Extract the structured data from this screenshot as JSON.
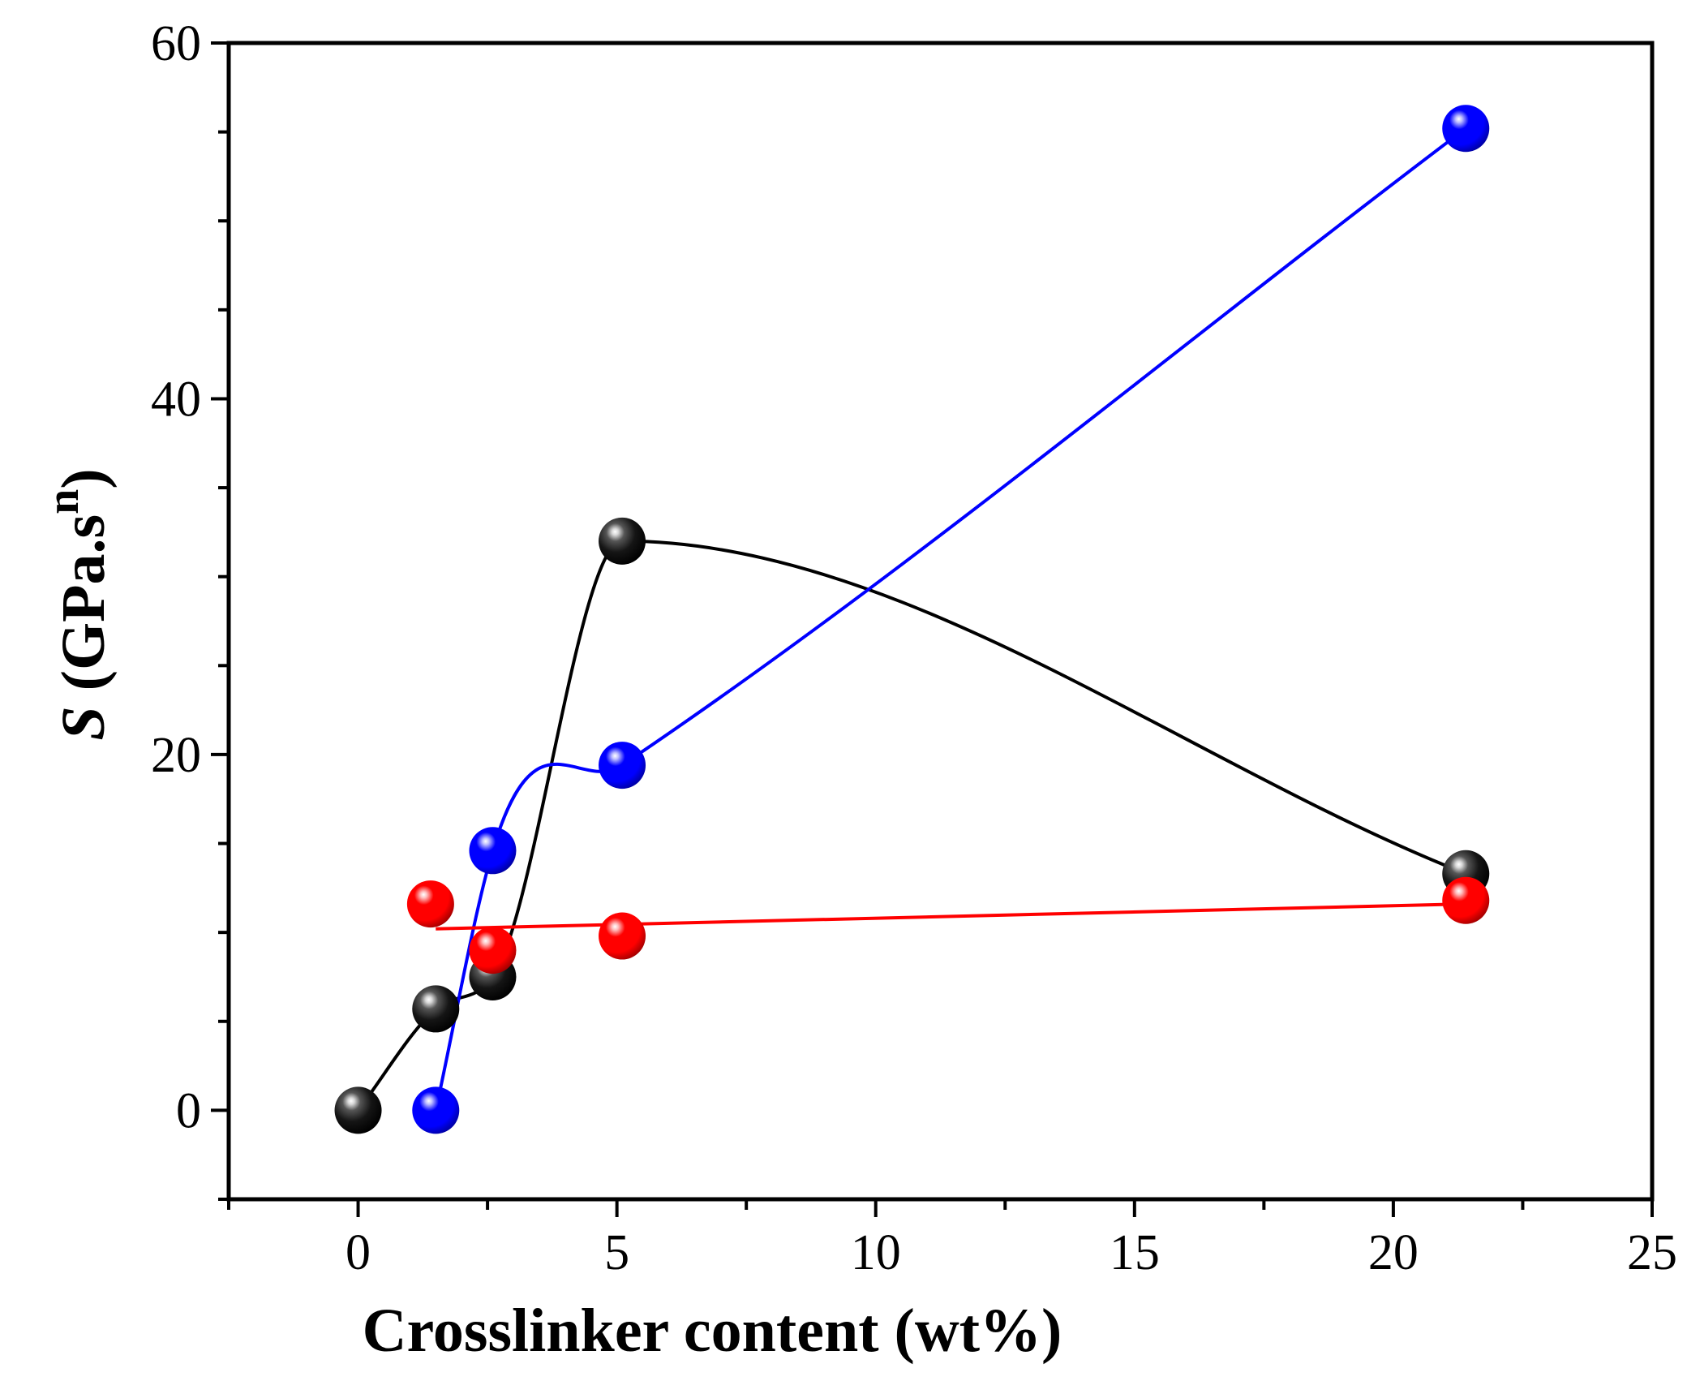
{
  "chart_data": {
    "type": "scatter",
    "title": "",
    "xlabel": "Crosslinker content (wt%)",
    "ylabel": {
      "symbol": "S",
      "unit_prefix": " (GPa.s",
      "superscript": "n",
      "unit_suffix": ")"
    },
    "xlim": [
      -2.5,
      25
    ],
    "ylim": [
      -5,
      60
    ],
    "x_ticks": [
      0,
      5,
      10,
      15,
      20,
      25
    ],
    "x_tick_labels": [
      "0",
      "5",
      "10",
      "15",
      "20",
      "25"
    ],
    "y_ticks": [
      0,
      20,
      40,
      60
    ],
    "y_tick_labels": [
      "0",
      "20",
      "40",
      "60"
    ],
    "grid": false,
    "legend": "none",
    "series": [
      {
        "color": "#000000",
        "marker": "sphere",
        "line": "smooth",
        "x": [
          0,
          1.5,
          2.6,
          5.1,
          21.4
        ],
        "y": [
          0,
          5.7,
          7.5,
          32.0,
          13.3
        ]
      },
      {
        "color": "#0000ff",
        "marker": "sphere",
        "line": "smooth",
        "x": [
          1.5,
          2.6,
          5.1,
          21.4
        ],
        "y": [
          0,
          14.6,
          19.4,
          55.2
        ]
      },
      {
        "color": "#ff0000",
        "marker": "sphere",
        "line": "linear-fit",
        "x": [
          1.4,
          2.6,
          5.1,
          21.4
        ],
        "y": [
          11.6,
          9.0,
          9.8,
          11.8
        ],
        "fit": {
          "x": [
            1.5,
            21.4
          ],
          "y": [
            10.2,
            11.6
          ]
        }
      }
    ]
  }
}
